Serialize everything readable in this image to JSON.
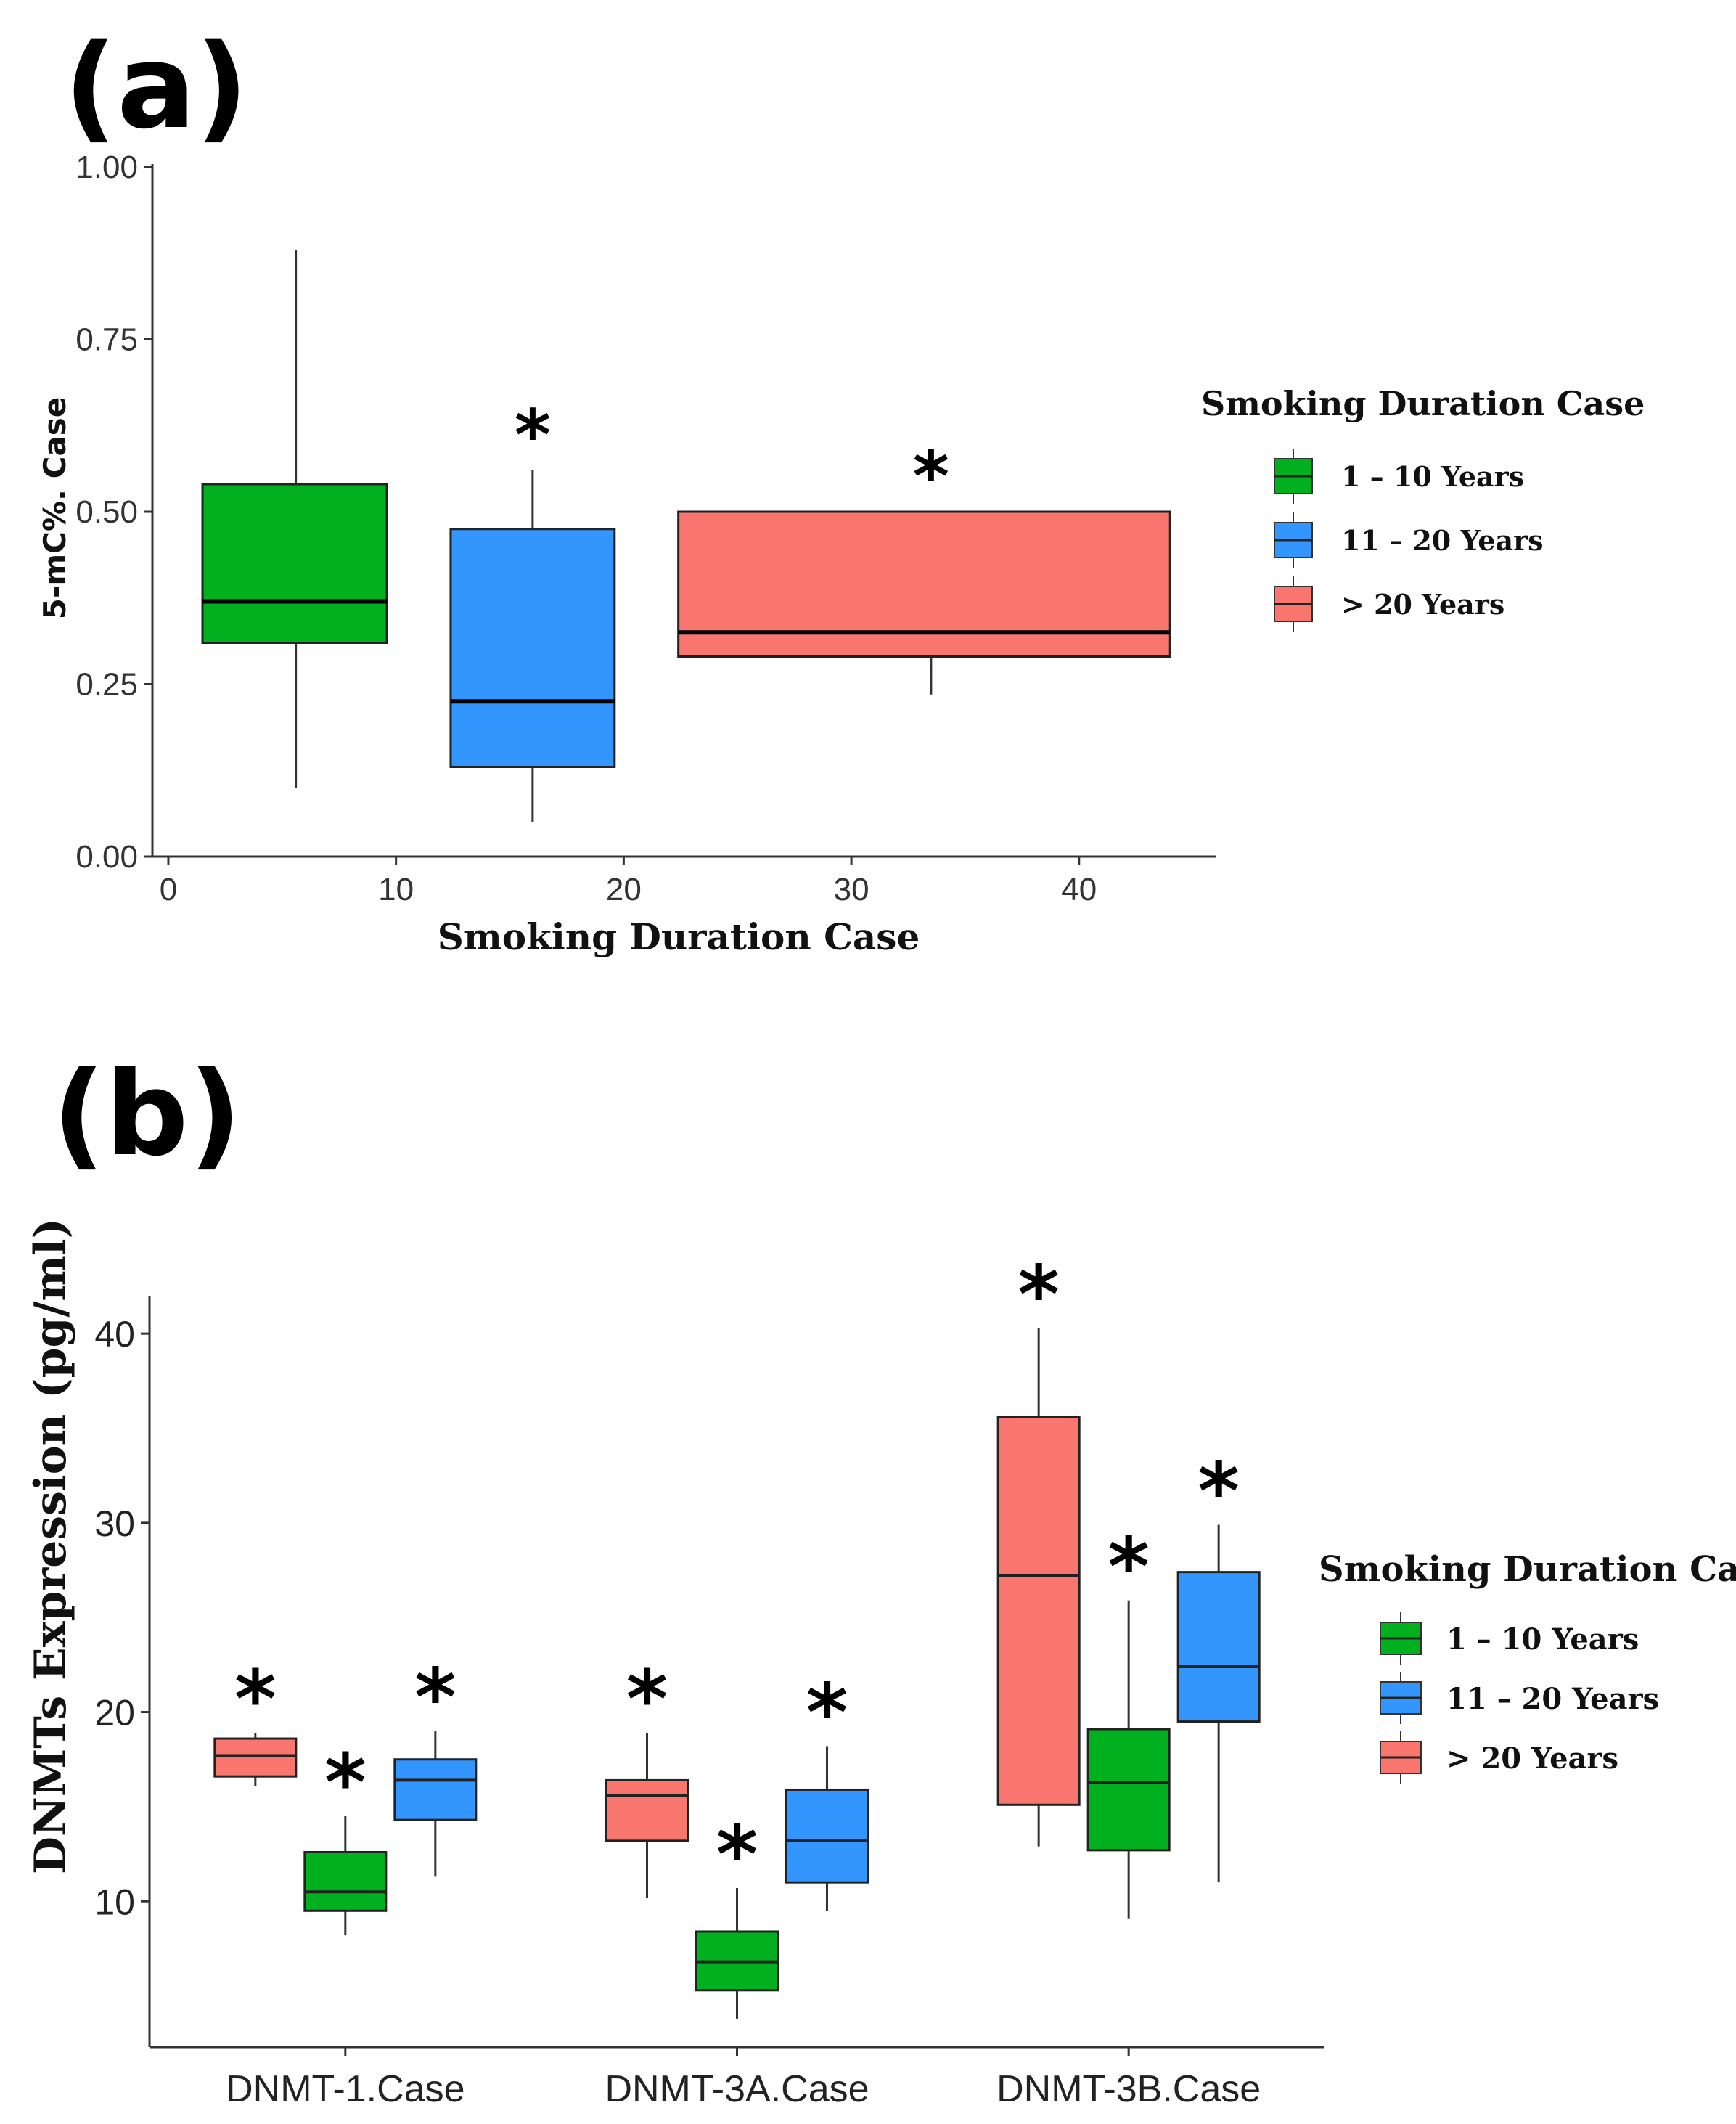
{
  "panel_a_label": "(a)",
  "panel_b_label": "(b)",
  "chart_data": [
    {
      "type": "box",
      "panel": "a",
      "title": "",
      "xlabel": "Smoking Duration Case",
      "ylabel": "5-mC%. Case",
      "xlim": [
        -0.7,
        46
      ],
      "ylim": [
        0,
        1
      ],
      "x_ticks": [
        {
          "value": 0,
          "label": "0"
        },
        {
          "value": 10,
          "label": "10"
        },
        {
          "value": 20,
          "label": "20"
        },
        {
          "value": 30,
          "label": "30"
        },
        {
          "value": 40,
          "label": "40"
        }
      ],
      "y_ticks": [
        {
          "value": 0,
          "label": "0.00"
        },
        {
          "value": 0.25,
          "label": "0.25"
        },
        {
          "value": 0.5,
          "label": "0.50"
        },
        {
          "value": 0.75,
          "label": "0.75"
        },
        {
          "value": 1,
          "label": "1.00"
        }
      ],
      "legend_title": "Smoking Duration Case",
      "legend_position": "right",
      "boxes": [
        {
          "group": "1 – 10 Years",
          "x_min": 1.5,
          "x_max": 9.6,
          "whisker_x": 5.6,
          "low": 0.1,
          "q1": 0.31,
          "median": 0.37,
          "q3": 0.54,
          "high": 0.88,
          "significant": false
        },
        {
          "group": "11 – 20 Years",
          "x_min": 12.4,
          "x_max": 19.6,
          "whisker_x": 16.0,
          "low": 0.05,
          "q1": 0.13,
          "median": 0.225,
          "q3": 0.475,
          "high": 0.56,
          "significant": true
        },
        {
          "group": "> 20 Years",
          "x_min": 22.4,
          "x_max": 44.0,
          "whisker_x": 33.5,
          "low": 0.235,
          "q1": 0.29,
          "median": 0.325,
          "q3": 0.5,
          "high": 0.5,
          "significant": true
        }
      ]
    },
    {
      "type": "box",
      "panel": "b",
      "title": "",
      "xlabel": "",
      "ylabel": "DNMTs Expression (pg/ml)",
      "ylim": [
        2.3,
        42
      ],
      "categories": [
        "DNMT-1.Case",
        "DNMT-3A.Case",
        "DNMT-3B.Case"
      ],
      "y_ticks": [
        {
          "value": 10,
          "label": "10"
        },
        {
          "value": 20,
          "label": "20"
        },
        {
          "value": 30,
          "label": "30"
        },
        {
          "value": 40,
          "label": "40"
        }
      ],
      "legend_title": "Smoking Duration Case",
      "legend_position": "right",
      "series": [
        {
          "name": "> 20 Years",
          "boxes": [
            {
              "low": 16.1,
              "q1": 16.6,
              "median": 17.7,
              "q3": 18.6,
              "high": 18.9,
              "significant": true
            },
            {
              "low": 10.2,
              "q1": 13.2,
              "median": 15.6,
              "q3": 16.4,
              "high": 18.9,
              "significant": true
            },
            {
              "low": 12.9,
              "q1": 15.1,
              "median": 27.2,
              "q3": 35.6,
              "high": 40.3,
              "significant": true
            }
          ]
        },
        {
          "name": "1 – 10 Years",
          "boxes": [
            {
              "low": 8.2,
              "q1": 9.5,
              "median": 10.5,
              "q3": 12.6,
              "high": 14.5,
              "significant": true
            },
            {
              "low": 3.8,
              "q1": 5.3,
              "median": 6.8,
              "q3": 8.4,
              "high": 10.7,
              "significant": true
            },
            {
              "low": 9.1,
              "q1": 12.7,
              "median": 16.3,
              "q3": 19.1,
              "high": 25.9,
              "significant": true
            }
          ]
        },
        {
          "name": "11 – 20 Years",
          "boxes": [
            {
              "low": 11.3,
              "q1": 14.3,
              "median": 16.4,
              "q3": 17.5,
              "high": 19.0,
              "significant": true
            },
            {
              "low": 9.5,
              "q1": 11.0,
              "median": 13.2,
              "q3": 15.9,
              "high": 18.2,
              "significant": true
            },
            {
              "low": 11.0,
              "q1": 19.5,
              "median": 22.4,
              "q3": 27.4,
              "high": 29.9,
              "significant": true
            }
          ]
        }
      ]
    }
  ],
  "legend_items_a": [
    {
      "label": "1 – 10 Years",
      "color": "#00b01f"
    },
    {
      "label": "11 – 20 Years",
      "color": "#3396ff"
    },
    {
      "label": "> 20 Years",
      "color": "#f8766d"
    }
  ],
  "legend_items_b": [
    {
      "label": "1 – 10 Years",
      "color": "#00b01f"
    },
    {
      "label": "11 – 20 Years",
      "color": "#3396ff"
    },
    {
      "label": "> 20 Years",
      "color": "#f8766d"
    }
  ],
  "significance_marker": "*"
}
